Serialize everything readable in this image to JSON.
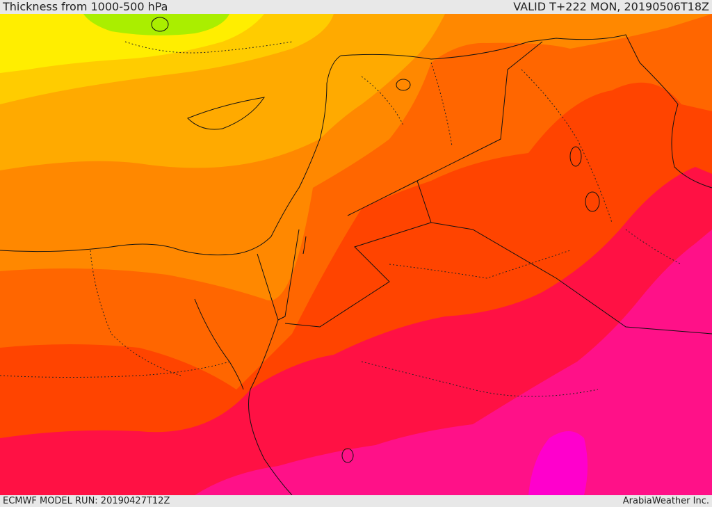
{
  "header": {
    "title": "Thickness from 1000-500 hPa",
    "valid": "VALID T+222 MON, 20190506T18Z"
  },
  "footer": {
    "model_run": "ECMWF MODEL RUN: 20190427T12Z",
    "credit": "ArabiaWeather Inc."
  },
  "colors": {
    "lime": "#aaee00",
    "yellow": "#ffee00",
    "amber": "#ffcc00",
    "light_orange": "#ffaa00",
    "orange": "#ff8800",
    "dark_orange": "#ff6600",
    "red_orange": "#ff4400",
    "red": "#ff1144",
    "crimson": "#ff0055",
    "magenta_pink": "#ff1188",
    "magenta": "#ff00cc",
    "border_line": "#111111"
  }
}
